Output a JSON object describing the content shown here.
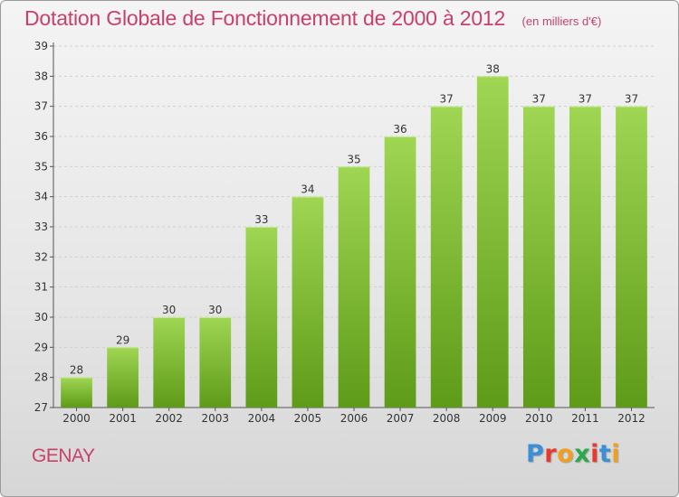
{
  "header": {
    "title": "Dotation Globale de Fonctionnement de 2000 à 2012",
    "unit": "(en milliers d'€)"
  },
  "footer": {
    "commune": "GENAY",
    "logo_text": "Proxiti",
    "logo_colors": [
      "#3a8fd6",
      "#e8392f",
      "#f0a020",
      "#2aa84a",
      "#e8392f",
      "#3a8fd6",
      "#f0a020"
    ]
  },
  "colors": {
    "bar_light": "#9fd653",
    "bar_dark": "#5e9b18",
    "accent": "#c8416a"
  },
  "chart_data": {
    "type": "bar",
    "title": "Dotation Globale de Fonctionnement de 2000 à 2012",
    "categories": [
      "2000",
      "2001",
      "2002",
      "2003",
      "2004",
      "2005",
      "2006",
      "2007",
      "2008",
      "2009",
      "2010",
      "2011",
      "2012"
    ],
    "values": [
      28,
      29,
      30,
      30,
      33,
      34,
      35,
      36,
      37,
      38,
      37,
      37,
      37
    ],
    "y_ticks": [
      27,
      28,
      29,
      30,
      31,
      32,
      33,
      34,
      35,
      36,
      37,
      38,
      39
    ],
    "ylim": [
      27,
      39
    ],
    "grid": true,
    "data_labels": true
  }
}
